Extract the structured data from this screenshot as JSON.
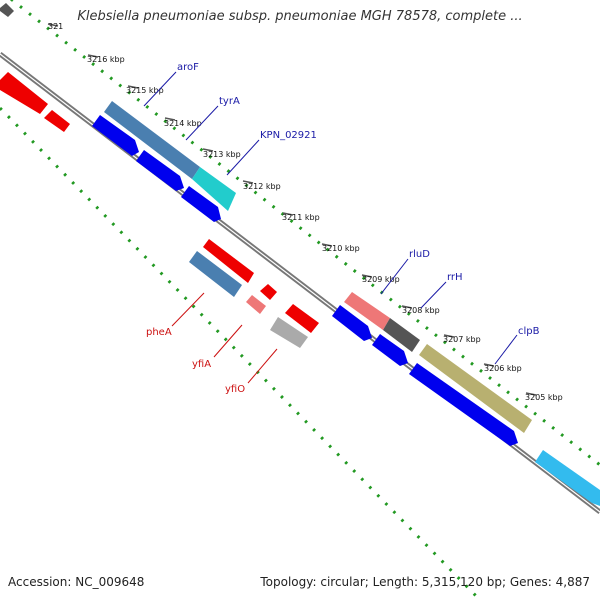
{
  "map": {
    "title": "Klebsiella pneumoniae subsp. pneumoniae MGH 78578, complete ...",
    "accession": "Accession: NC_009648",
    "genome_info": "Topology: circular; Length: 5,315,120 bp; Genes: 4,887"
  },
  "ticks": [
    "321",
    "3216 kbp",
    "3215 kbp",
    "3214 kbp",
    "3213 kbp",
    "3212 kbp",
    "3211 kbp",
    "3210 kbp",
    "3209 kbp",
    "3208 kbp",
    "3207 kbp",
    "3206 kbp",
    "3205 kbp"
  ],
  "gene_labels": {
    "forward": [
      "aroF",
      "tyrA",
      "KPN_02921",
      "rluD",
      "rrH",
      "clpB"
    ],
    "reverse": [
      "pheA",
      "yfiA",
      "yfiO"
    ]
  },
  "colors": {
    "forward_label": "#1a1aa6",
    "reverse_label": "#cc1111",
    "backbone": "#777777",
    "cds_blue": "#0000ee",
    "cds_steel": "#4a7fb0",
    "cds_red": "#ee0000",
    "cds_pink": "#ee7777",
    "cds_grey": "#aaaaaa",
    "cds_dark": "#555555",
    "cds_olive": "#b8b070",
    "cds_cyan": "#22cccc",
    "cds_sky": "#33bbee",
    "gc_dots": "#229922"
  }
}
